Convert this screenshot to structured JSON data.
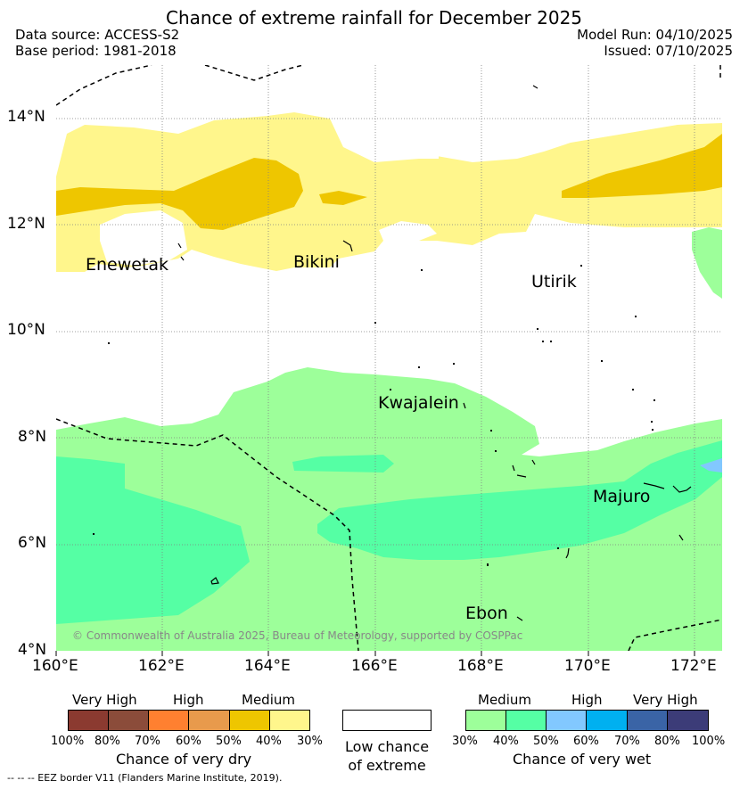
{
  "title": "Chance of extreme rainfall for December 2025",
  "header": {
    "data_source": "Data source: ACCESS-S2",
    "base_period": "Base period: 1981-2018",
    "model_run": "Model Run: 04/10/2025",
    "issued": "Issued: 07/10/2025"
  },
  "map": {
    "lat_ticks": [
      "14°N",
      "12°N",
      "10°N",
      "8°N",
      "6°N",
      "4°N"
    ],
    "lon_ticks": [
      "160°E",
      "162°E",
      "164°E",
      "166°E",
      "168°E",
      "170°E",
      "172°E"
    ],
    "places": [
      "Enewetak",
      "Bikini",
      "Utirik",
      "Kwajalein",
      "Majuro",
      "Ebon"
    ],
    "copyright": "© Commonwealth of Australia 2025, Bureau of Meteorology, supported by COSPPac"
  },
  "legend": {
    "dry": {
      "headings": [
        "Very High",
        "High",
        "Medium"
      ],
      "colors": [
        "#8b3a30",
        "#8b4c3a",
        "#ff8030",
        "#e89a4c",
        "#eec600",
        "#fff68c"
      ],
      "labels": [
        "100%",
        "80%",
        "70%",
        "60%",
        "50%",
        "40%",
        "30%"
      ],
      "title": "Chance of very dry"
    },
    "low": {
      "line1": "Low chance",
      "line2": "of extreme",
      "color": "#ffffff"
    },
    "wet": {
      "headings": [
        "Medium",
        "High",
        "Very High"
      ],
      "colors": [
        "#9dff9a",
        "#55ffa4",
        "#82c8ff",
        "#00b0f0",
        "#3a64a6",
        "#3c3c78"
      ],
      "labels": [
        "30%",
        "40%",
        "50%",
        "60%",
        "70%",
        "80%",
        "100%"
      ],
      "title": "Chance of very wet"
    }
  },
  "footnote": "-- -- -- EEZ border V11 (Flanders Marine Institute, 2019)."
}
